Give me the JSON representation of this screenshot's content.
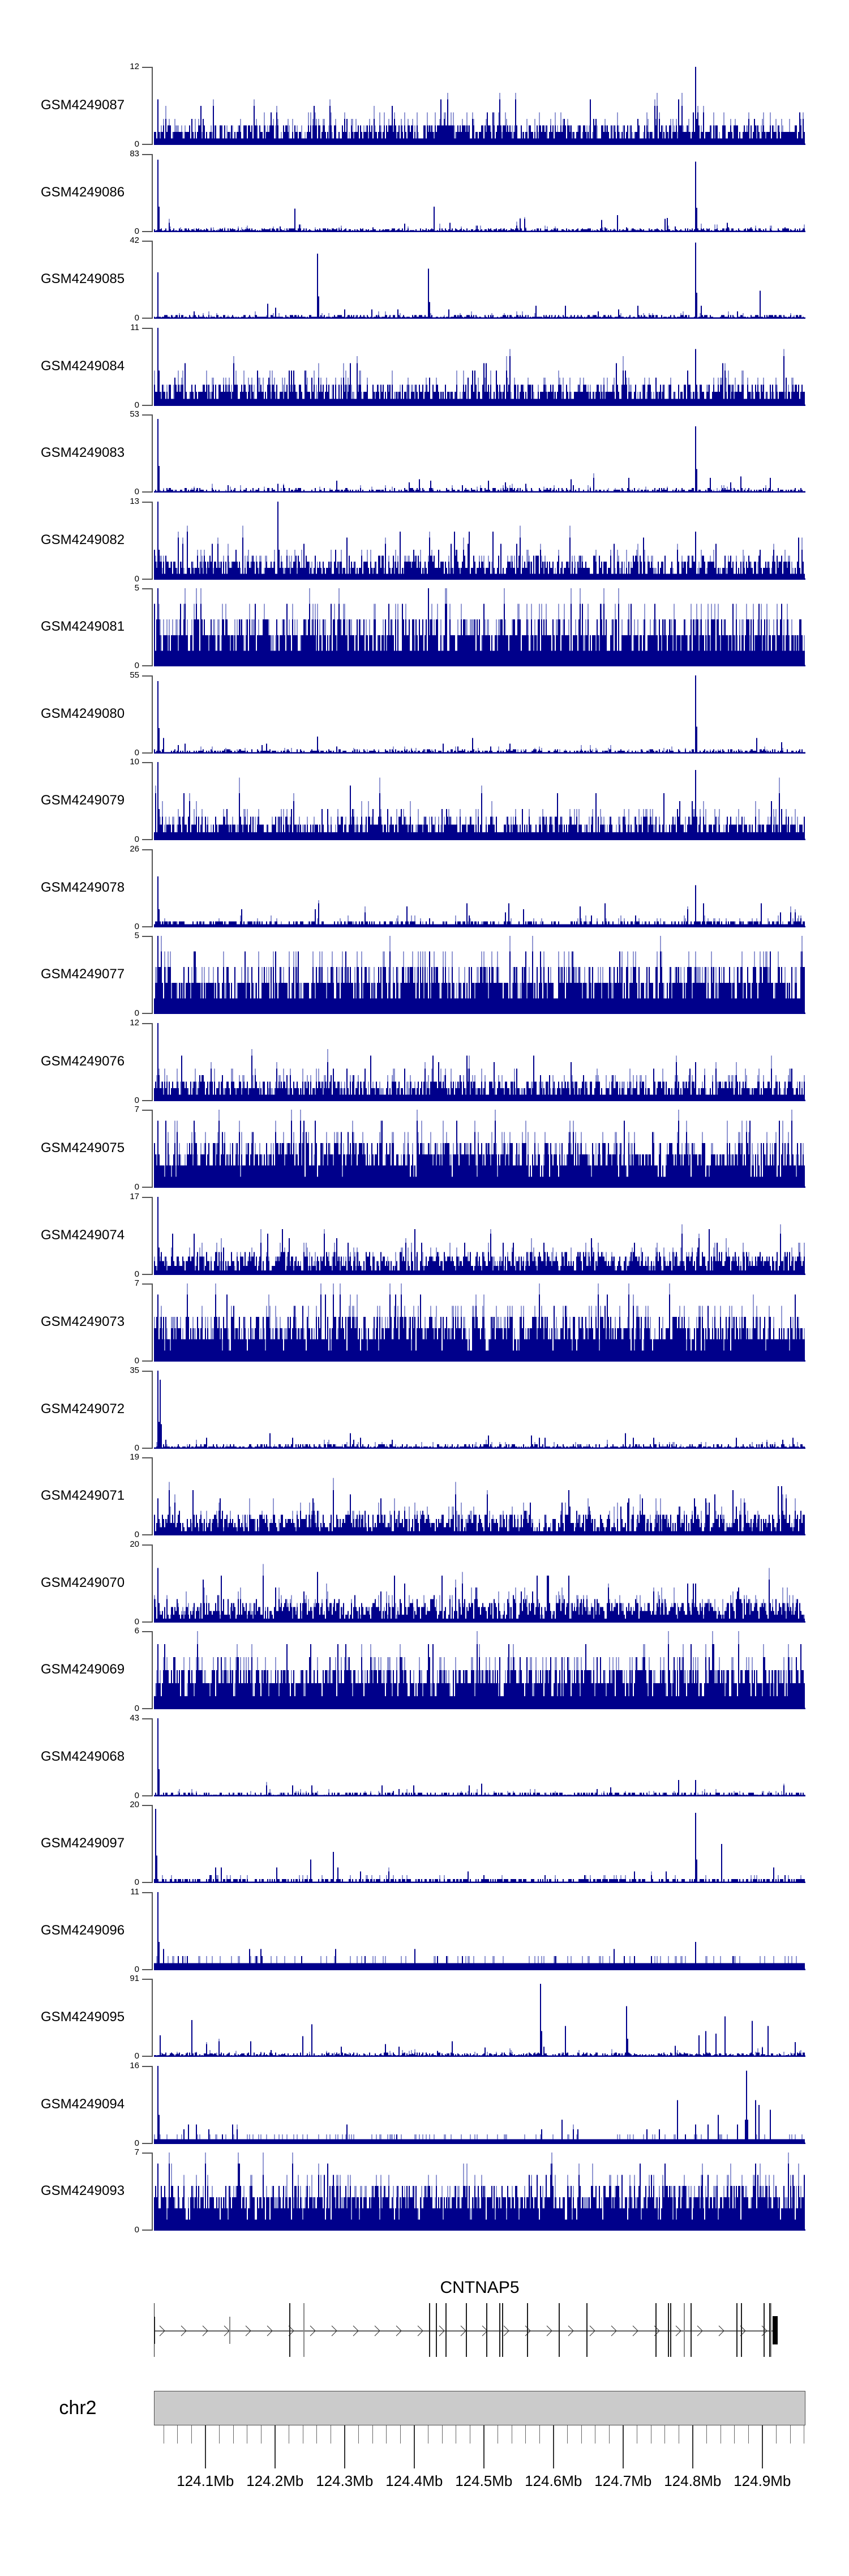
{
  "figure": {
    "description": "Genome browser coverage plot of 25 GEO samples over chr2:124.03-124.96Mb with CNTNAP5 gene model and chromosome axis",
    "background": "#ffffff"
  },
  "colors": {
    "bar_dark": "#00008B",
    "bar_light": "#9096d2",
    "axis_line": "#555555",
    "tick_minor": "#666666",
    "tick_major": "#333333",
    "gene_line": "#2a2a2a",
    "exon_tall": "#1f1f1f",
    "exon_gray": "#878787",
    "exon_box": "#000000",
    "ideogram_fill": "#cbcbcb",
    "text": "#000000"
  },
  "chart_data": {
    "type": "bar",
    "subtype": "genome-coverage-histogram",
    "title": "",
    "xlabel": "",
    "ylabel": "",
    "x_axis": {
      "chromosome": "chr2",
      "start_mb": 124.026,
      "end_mb": 124.962,
      "major_tick_labels": [
        "124.1Mb",
        "124.2Mb",
        "124.3Mb",
        "124.4Mb",
        "124.5Mb",
        "124.6Mb",
        "124.7Mb",
        "124.8Mb",
        "124.9Mb"
      ],
      "major_tick_positions_mb": [
        124.1,
        124.2,
        124.3,
        124.4,
        124.5,
        124.6,
        124.7,
        124.8,
        124.9
      ],
      "minor_tick_step_mb": 0.02,
      "grid": false
    },
    "tracks": [
      {
        "label": "GSM4249087",
        "ymax": 12,
        "ymax_label": "12",
        "ymin_label": "0",
        "profile": "dense-medium",
        "seed": 11,
        "spikes": [
          [
            0.005,
            0.55
          ],
          [
            0.09,
            0.5
          ],
          [
            0.52,
            0.45
          ],
          [
            0.831,
            0.98
          ]
        ]
      },
      {
        "label": "GSM4249086",
        "ymax": 83,
        "ymax_label": "83",
        "ymin_label": "0",
        "profile": "low",
        "seed": 22,
        "spikes": [
          [
            0.005,
            0.93
          ],
          [
            0.215,
            0.3
          ],
          [
            0.43,
            0.33
          ],
          [
            0.71,
            0.22
          ],
          [
            0.831,
            0.9
          ],
          [
            0.88,
            0.12
          ]
        ]
      },
      {
        "label": "GSM4249085",
        "ymax": 42,
        "ymax_label": "42",
        "ymin_label": "0",
        "profile": "low",
        "seed": 33,
        "spikes": [
          [
            0.005,
            0.6
          ],
          [
            0.25,
            0.83
          ],
          [
            0.42,
            0.65
          ],
          [
            0.831,
            0.98
          ],
          [
            0.93,
            0.35
          ]
        ]
      },
      {
        "label": "GSM4249084",
        "ymax": 11,
        "ymax_label": "11",
        "ymin_label": "0",
        "profile": "dense-medium",
        "seed": 44,
        "spikes": [
          [
            0.005,
            1.0
          ],
          [
            0.3,
            0.55
          ],
          [
            0.831,
            0.75
          ]
        ]
      },
      {
        "label": "GSM4249083",
        "ymax": 53,
        "ymax_label": "53",
        "ymin_label": "0",
        "profile": "low",
        "seed": 55,
        "spikes": [
          [
            0.005,
            0.95
          ],
          [
            0.28,
            0.15
          ],
          [
            0.831,
            0.85
          ],
          [
            0.9,
            0.2
          ]
        ]
      },
      {
        "label": "GSM4249082",
        "ymax": 13,
        "ymax_label": "13",
        "ymin_label": "0",
        "profile": "dense-medium",
        "seed": 66,
        "spikes": [
          [
            0.005,
            1.0
          ],
          [
            0.19,
            1.0
          ],
          [
            0.46,
            0.6
          ],
          [
            0.831,
            0.6
          ]
        ]
      },
      {
        "label": "GSM4249081",
        "ymax": 5,
        "ymax_label": "5",
        "ymin_label": "0",
        "profile": "dense-tall",
        "seed": 77,
        "spikes": [
          [
            0.005,
            0.9
          ],
          [
            0.42,
            0.95
          ]
        ]
      },
      {
        "label": "GSM4249080",
        "ymax": 55,
        "ymax_label": "55",
        "ymin_label": "0",
        "profile": "low",
        "seed": 88,
        "spikes": [
          [
            0.005,
            0.93
          ],
          [
            0.25,
            0.22
          ],
          [
            0.831,
            1.0
          ]
        ]
      },
      {
        "label": "GSM4249079",
        "ymax": 10,
        "ymax_label": "10",
        "ymin_label": "0",
        "profile": "dense-medium",
        "seed": 99,
        "spikes": [
          [
            0.005,
            1.0
          ],
          [
            0.3,
            0.7
          ],
          [
            0.831,
            0.9
          ]
        ]
      },
      {
        "label": "GSM4249078",
        "ymax": 26,
        "ymax_label": "26",
        "ymin_label": "0",
        "profile": "low-plus",
        "seed": 110,
        "spikes": [
          [
            0.005,
            0.65
          ],
          [
            0.48,
            0.3
          ],
          [
            0.831,
            0.55
          ]
        ]
      },
      {
        "label": "GSM4249077",
        "ymax": 5,
        "ymax_label": "5",
        "ymin_label": "0",
        "profile": "dense-tall",
        "seed": 121,
        "spikes": [
          [
            0.005,
            0.9
          ]
        ]
      },
      {
        "label": "GSM4249076",
        "ymax": 12,
        "ymax_label": "12",
        "ymin_label": "0",
        "profile": "dense-medium",
        "seed": 132,
        "spikes": [
          [
            0.005,
            1.0
          ],
          [
            0.48,
            0.58
          ],
          [
            0.831,
            0.5
          ]
        ]
      },
      {
        "label": "GSM4249075",
        "ymax": 7,
        "ymax_label": "7",
        "ymin_label": "0",
        "profile": "dense-tall",
        "seed": 143,
        "spikes": [
          [
            0.005,
            0.85
          ],
          [
            0.35,
            0.9
          ]
        ]
      },
      {
        "label": "GSM4249074",
        "ymax": 17,
        "ymax_label": "17",
        "ymin_label": "0",
        "profile": "dense-medium",
        "seed": 154,
        "spikes": [
          [
            0.005,
            1.0
          ],
          [
            0.55,
            0.4
          ]
        ]
      },
      {
        "label": "GSM4249073",
        "ymax": 7,
        "ymax_label": "7",
        "ymin_label": "0",
        "profile": "dense-tall",
        "seed": 165,
        "spikes": [
          [
            0.005,
            0.9
          ]
        ]
      },
      {
        "label": "GSM4249072",
        "ymax": 35,
        "ymax_label": "35",
        "ymin_label": "0",
        "profile": "low",
        "seed": 176,
        "spikes": [
          [
            0.005,
            1.0
          ],
          [
            0.008,
            0.88
          ],
          [
            0.3,
            0.2
          ],
          [
            0.6,
            0.15
          ]
        ]
      },
      {
        "label": "GSM4249071",
        "ymax": 19,
        "ymax_label": "19",
        "ymin_label": "0",
        "profile": "dense-medium",
        "seed": 187,
        "spikes": [
          [
            0.005,
            0.45
          ],
          [
            0.25,
            0.3
          ],
          [
            0.831,
            0.35
          ]
        ]
      },
      {
        "label": "GSM4249070",
        "ymax": 20,
        "ymax_label": "20",
        "ymin_label": "0",
        "profile": "dense-medium",
        "seed": 198,
        "spikes": [
          [
            0.005,
            0.7
          ],
          [
            0.25,
            0.65
          ],
          [
            0.55,
            0.35
          ],
          [
            0.831,
            0.4
          ]
        ]
      },
      {
        "label": "GSM4249069",
        "ymax": 6,
        "ymax_label": "6",
        "ymin_label": "0",
        "profile": "dense-tall",
        "seed": 209,
        "spikes": [
          [
            0.005,
            0.9
          ]
        ]
      },
      {
        "label": "GSM4249068",
        "ymax": 43,
        "ymax_label": "43",
        "ymin_label": "0",
        "profile": "low",
        "seed": 220,
        "spikes": [
          [
            0.005,
            1.0
          ],
          [
            0.35,
            0.15
          ],
          [
            0.7,
            0.12
          ],
          [
            0.831,
            0.2
          ]
        ]
      },
      {
        "label": "GSM4249097",
        "ymax": 20,
        "ymax_label": "20",
        "ymin_label": "0",
        "profile": "low",
        "seed": 231,
        "spikes": [
          [
            0.002,
            0.95
          ],
          [
            0.085,
            0.1
          ],
          [
            0.188,
            0.2
          ],
          [
            0.24,
            0.29
          ],
          [
            0.275,
            0.42
          ],
          [
            0.317,
            0.17
          ],
          [
            0.6,
            0.12
          ],
          [
            0.831,
            0.9
          ],
          [
            0.87,
            0.5
          ],
          [
            0.95,
            0.2
          ]
        ]
      },
      {
        "label": "GSM4249096",
        "ymax": 11,
        "ymax_label": "11",
        "ymin_label": "0",
        "profile": "low-plus",
        "seed": 242,
        "spikes": [
          [
            0.005,
            1.0
          ],
          [
            0.4,
            0.25
          ],
          [
            0.831,
            0.35
          ]
        ]
      },
      {
        "label": "GSM4249095",
        "ymax": 91,
        "ymax_label": "91",
        "ymin_label": "0",
        "profile": "low",
        "seed": 253,
        "spikes": [
          [
            0.008,
            0.28
          ],
          [
            0.057,
            0.47
          ],
          [
            0.148,
            0.2
          ],
          [
            0.227,
            0.26
          ],
          [
            0.242,
            0.42
          ],
          [
            0.592,
            0.93
          ],
          [
            0.63,
            0.4
          ],
          [
            0.724,
            0.65
          ],
          [
            0.835,
            0.28
          ],
          [
            0.846,
            0.33
          ],
          [
            0.861,
            0.3
          ],
          [
            0.876,
            0.52
          ],
          [
            0.917,
            0.46
          ],
          [
            0.941,
            0.4
          ]
        ]
      },
      {
        "label": "GSM4249094",
        "ymax": 16,
        "ymax_label": "16",
        "ymin_label": "0",
        "profile": "low-plus",
        "seed": 264,
        "spikes": [
          [
            0.005,
            1.0
          ],
          [
            0.803,
            0.55
          ],
          [
            0.831,
            0.25
          ],
          [
            0.85,
            0.25
          ],
          [
            0.865,
            0.38
          ],
          [
            0.908,
            0.95
          ],
          [
            0.922,
            0.58
          ],
          [
            0.928,
            0.5
          ],
          [
            0.945,
            0.45
          ]
        ]
      },
      {
        "label": "GSM4249093",
        "ymax": 7,
        "ymax_label": "7",
        "ymin_label": "0",
        "profile": "dense-tall",
        "seed": 275,
        "spikes": [
          [
            0.005,
            0.85
          ]
        ]
      }
    ],
    "gene_track": {
      "title": "CNTNAP5",
      "strand": "+",
      "strand_symbol": ">",
      "exons": [
        {
          "f": 0.0,
          "t": "thick"
        },
        {
          "f": 0.1164,
          "t": "short"
        },
        {
          "f": 0.2085,
          "t": "tall"
        },
        {
          "f": 0.2302,
          "t": "gtall"
        },
        {
          "f": 0.4231,
          "t": "tall"
        },
        {
          "f": 0.4335,
          "t": "tall"
        },
        {
          "f": 0.4483,
          "t": "tall"
        },
        {
          "f": 0.4796,
          "t": "tall"
        },
        {
          "f": 0.5109,
          "t": "tall"
        },
        {
          "f": 0.5308,
          "t": "tall"
        },
        {
          "f": 0.5352,
          "t": "tall"
        },
        {
          "f": 0.5734,
          "t": "tall"
        },
        {
          "f": 0.6221,
          "t": "tall"
        },
        {
          "f": 0.6646,
          "t": "tall"
        },
        {
          "f": 0.7706,
          "t": "tall"
        },
        {
          "f": 0.7897,
          "t": "tall"
        },
        {
          "f": 0.7932,
          "t": "tall"
        },
        {
          "f": 0.8141,
          "t": "gtall"
        },
        {
          "f": 0.8245,
          "t": "tall"
        },
        {
          "f": 0.8949,
          "t": "tall"
        },
        {
          "f": 0.9018,
          "t": "tall"
        },
        {
          "f": 0.9366,
          "t": "tall"
        },
        {
          "f": 0.9453,
          "t": "tall"
        },
        {
          "f": 0.947,
          "t": "gtall"
        }
      ],
      "last_exon_box": {
        "f_start": 0.9496,
        "f_end": 0.9575
      }
    },
    "ideogram": {
      "label": "chr2"
    }
  }
}
